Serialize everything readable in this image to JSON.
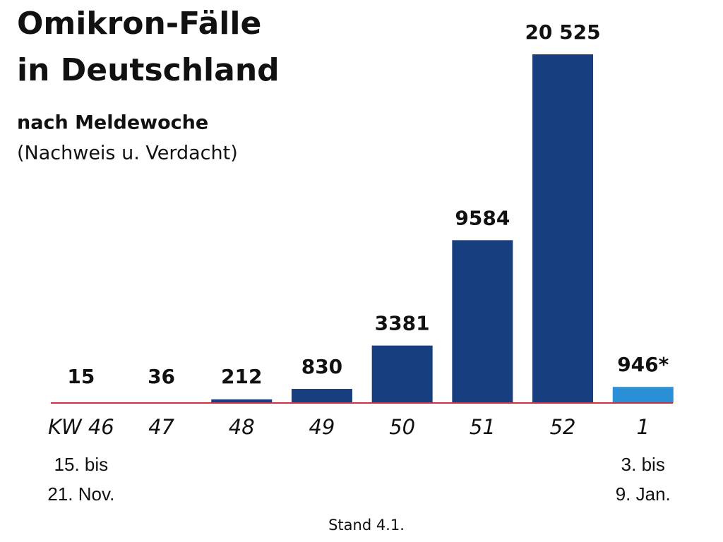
{
  "chart_data": {
    "type": "bar",
    "title": [
      "Omikron-Fälle",
      "in Deutschland"
    ],
    "subtitle": "nach Meldewoche",
    "note": "(Nachweis u. Verdacht)",
    "source": "Stand 4.1.",
    "categories": [
      "KW 46",
      "47",
      "48",
      "49",
      "50",
      "51",
      "52",
      "1"
    ],
    "category_dates": [
      [
        "15. bis",
        "21. Nov."
      ],
      [],
      [],
      [],
      [],
      [],
      [],
      [
        "3. bis",
        "9. Jan."
      ]
    ],
    "values": [
      15,
      36,
      212,
      830,
      3381,
      9584,
      20525,
      946
    ],
    "value_labels": [
      "15",
      "36",
      "212",
      "830",
      "3381",
      "9584",
      "20 525",
      "946*"
    ],
    "colors": [
      "#173f7f",
      "#173f7f",
      "#173f7f",
      "#173f7f",
      "#173f7f",
      "#173f7f",
      "#173f7f",
      "#2b8fd6"
    ],
    "baseline_color": "#c8334a"
  }
}
